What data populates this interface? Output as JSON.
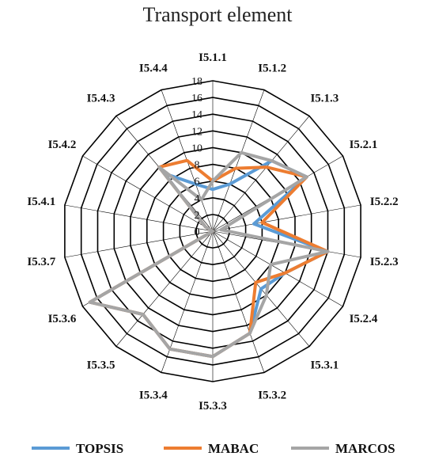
{
  "chart_data": {
    "type": "radar",
    "title": "Transport element",
    "axes": [
      "I5.1.1",
      "I5.1.2",
      "I5.1.3",
      "I5.2.1",
      "I5.2.2",
      "I5.2.3",
      "I5.2.4",
      "I5.3.1",
      "I5.3.2",
      "I5.3.3",
      "I5.3.4",
      "I5.3.5",
      "I5.3.6",
      "I5.3.7",
      "I5.4.1",
      "I5.4.2",
      "I5.4.3",
      "I5.4.4"
    ],
    "ticks": [
      0,
      2,
      4,
      6,
      8,
      10,
      12,
      14,
      16,
      18
    ],
    "rmax": 18,
    "grid": true,
    "legend_position": "bottom",
    "series": [
      {
        "name": "TOPSIS",
        "color": "#5B9BD5",
        "values": [
          5,
          6,
          11,
          13,
          5,
          14,
          10,
          9,
          13,
          15,
          15,
          13,
          17,
          0,
          0,
          1,
          9,
          6
        ]
      },
      {
        "name": "MABAC",
        "color": "#ED7D31",
        "values": [
          6,
          8,
          10,
          13,
          6,
          14,
          10,
          8,
          13,
          15,
          15,
          13,
          17,
          0,
          0,
          1,
          10,
          9
        ]
      },
      {
        "name": "MARCOS",
        "color": "#A5A5A5",
        "values": [
          6,
          10,
          11,
          13,
          1,
          14,
          8,
          10,
          13,
          15,
          15,
          13,
          17,
          0,
          0,
          1,
          10,
          4
        ]
      }
    ]
  }
}
